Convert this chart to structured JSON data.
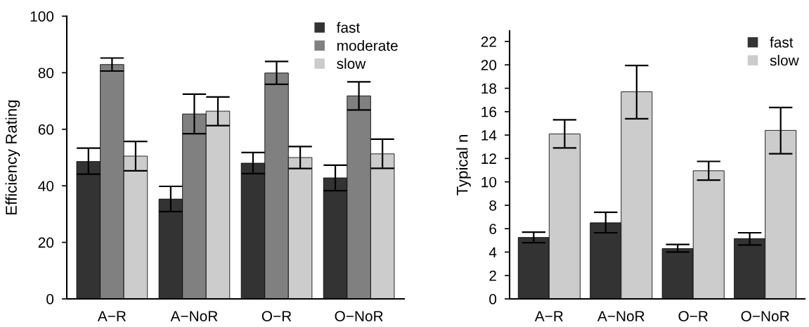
{
  "chart_data": [
    {
      "type": "bar",
      "ylabel": "Efficiency Rating",
      "categories": [
        "A−R",
        "A−NoR",
        "O−R",
        "O−NoR"
      ],
      "ylim": [
        0,
        100
      ],
      "yticks": [
        0,
        20,
        40,
        60,
        80,
        100
      ],
      "grid": false,
      "legend": "top right",
      "series": [
        {
          "name": "fast",
          "color": "#333333",
          "values": [
            48.6,
            35.3,
            48.0,
            42.8
          ],
          "errors": [
            [
              44.1,
              53.3
            ],
            [
              30.9,
              39.8
            ],
            [
              44.3,
              51.8
            ],
            [
              38.3,
              47.3
            ]
          ]
        },
        {
          "name": "moderate",
          "color": "#808080",
          "values": [
            82.9,
            65.4,
            79.9,
            71.8
          ],
          "errors": [
            [
              80.6,
              85.2
            ],
            [
              58.4,
              72.4
            ],
            [
              75.9,
              84.0
            ],
            [
              66.8,
              76.8
            ]
          ]
        },
        {
          "name": "slow",
          "color": "#cccccc",
          "values": [
            50.5,
            66.4,
            50.0,
            51.3
          ],
          "errors": [
            [
              45.3,
              55.7
            ],
            [
              61.3,
              71.4
            ],
            [
              46.1,
              53.9
            ],
            [
              46.2,
              56.5
            ]
          ]
        }
      ]
    },
    {
      "type": "bar",
      "ylabel": "Typical n",
      "categories": [
        "A−R",
        "A−NoR",
        "O−R",
        "O−NoR"
      ],
      "ylim": [
        0,
        22.9
      ],
      "yticks": [
        0,
        2,
        4,
        6,
        8,
        10,
        12,
        14,
        16,
        18,
        20,
        22
      ],
      "grid": false,
      "legend": "top right",
      "series": [
        {
          "name": "fast",
          "color": "#333333",
          "values": [
            5.25,
            6.5,
            4.3,
            5.15
          ],
          "errors": [
            [
              4.8,
              5.7
            ],
            [
              5.65,
              7.4
            ],
            [
              4.0,
              4.65
            ],
            [
              4.6,
              5.65
            ]
          ]
        },
        {
          "name": "slow",
          "color": "#cccccc",
          "values": [
            14.1,
            17.7,
            10.95,
            14.4
          ],
          "errors": [
            [
              12.9,
              15.3
            ],
            [
              15.4,
              19.95
            ],
            [
              10.15,
              11.75
            ],
            [
              12.4,
              16.35
            ]
          ]
        }
      ]
    }
  ]
}
